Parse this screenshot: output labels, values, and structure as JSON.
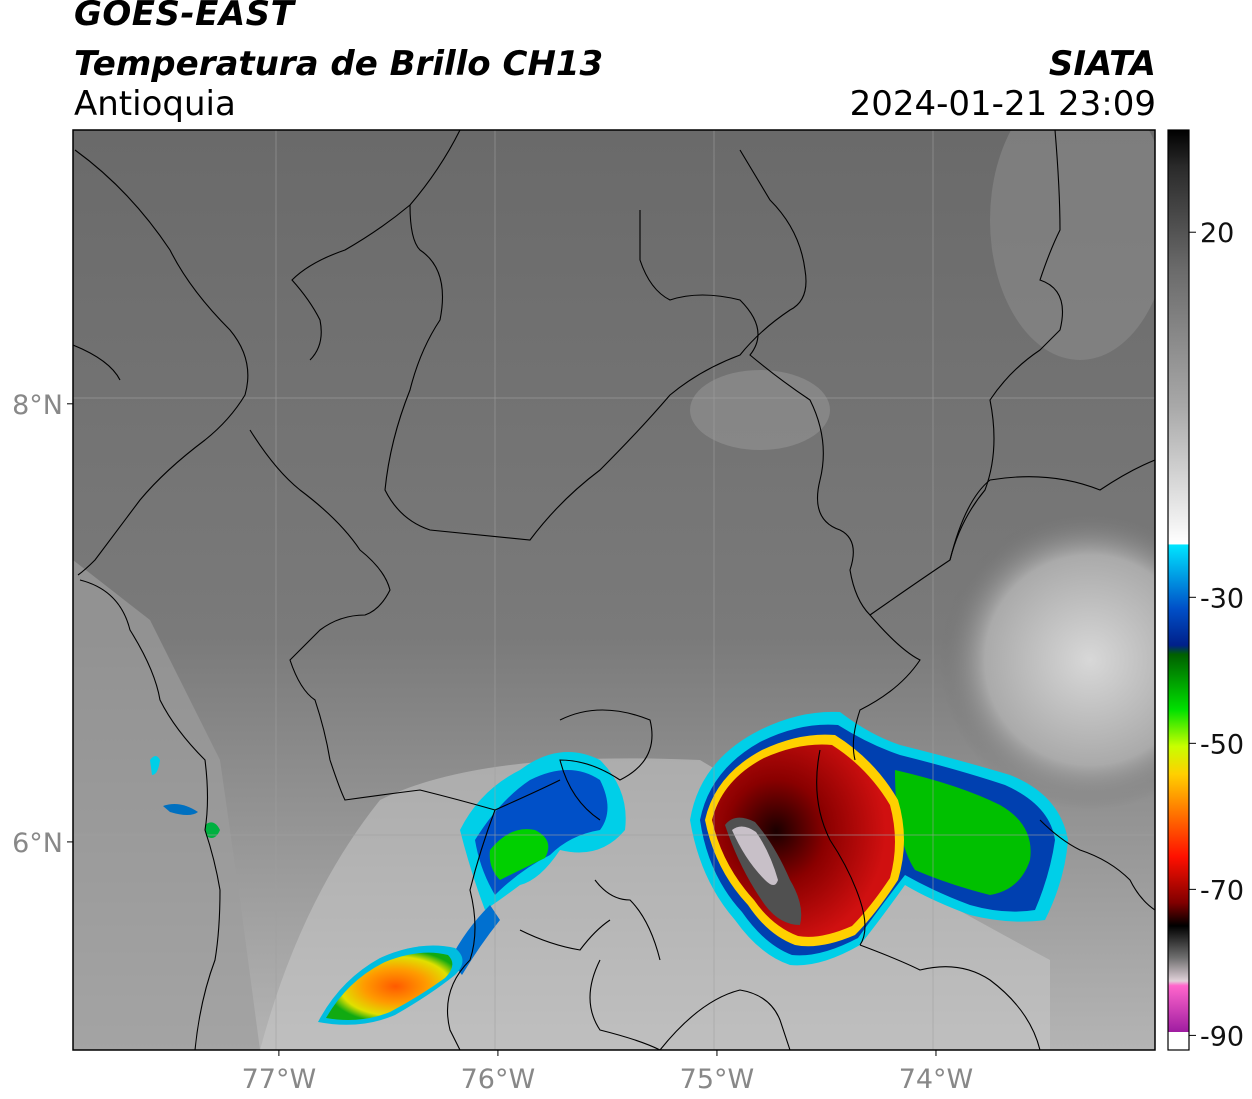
{
  "header": {
    "satellite": "GOES-EAST",
    "product": "Temperatura de Brillo CH13",
    "region": "Antioquia",
    "organization": "SIATA",
    "timestamp": "2024-01-21 23:09"
  },
  "map": {
    "lat_ticks": [
      {
        "value": 8,
        "label": "8°N"
      },
      {
        "value": 6,
        "label": "6°N"
      }
    ],
    "lon_ticks": [
      {
        "value": -77,
        "label": "77°W"
      },
      {
        "value": -76,
        "label": "76°W"
      },
      {
        "value": -75,
        "label": "75°W"
      },
      {
        "value": -74,
        "label": "74°W"
      }
    ],
    "lon_range": [
      -77.94,
      -73.0
    ],
    "lat_range": [
      5.05,
      9.25
    ],
    "background_color": "#6d6d6d"
  },
  "colorbar": {
    "ticks": [
      {
        "value": 20,
        "label": "20"
      },
      {
        "value": -30,
        "label": "-30"
      },
      {
        "value": -50,
        "label": "-50"
      },
      {
        "value": -70,
        "label": "-70"
      },
      {
        "value": -90,
        "label": "-90"
      }
    ],
    "range": [
      -92,
      34
    ]
  }
}
